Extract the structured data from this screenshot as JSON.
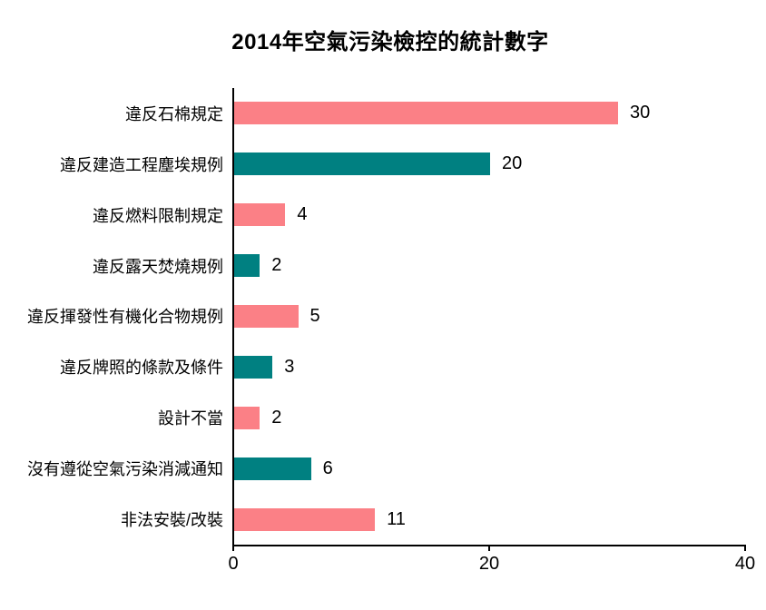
{
  "title": "2014年空氣污染檢控的統計數字",
  "colors": {
    "bar_pink": "#FB8086",
    "bar_teal": "#008081",
    "axis": "#000000",
    "text": "#000000",
    "background": "#FFFFFF"
  },
  "chart_data": {
    "type": "bar",
    "orientation": "horizontal",
    "title": "2014年空氣污染檢控的統計數字",
    "categories": [
      "違反石棉規定",
      "違反建造工程塵埃規例",
      "違反燃料限制規定",
      "違反露天焚燒規例",
      "違反揮發性有機化合物規例",
      "違反牌照的條款及條件",
      "設計不當",
      "沒有遵從空氣污染消減通知",
      "非法安裝/改裝"
    ],
    "values": [
      30,
      20,
      4,
      2,
      5,
      3,
      2,
      6,
      11
    ],
    "bar_colors": [
      "#FB8086",
      "#008081",
      "#FB8086",
      "#008081",
      "#FB8086",
      "#008081",
      "#FB8086",
      "#008081",
      "#FB8086"
    ],
    "value_labels": [
      "30",
      "20",
      "4",
      "2",
      "5",
      "3",
      "2",
      "6",
      "11"
    ],
    "xlabel": "",
    "ylabel": "",
    "xlim": [
      0,
      40
    ],
    "xticks": [
      0,
      20,
      40
    ],
    "xtick_labels": [
      "0",
      "20",
      "40"
    ],
    "grid": false,
    "legend": "none"
  }
}
